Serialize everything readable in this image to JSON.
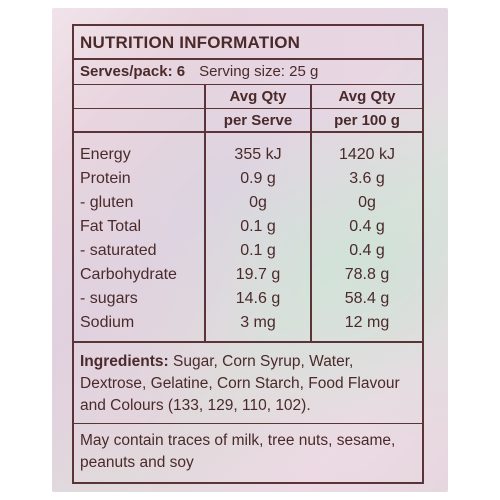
{
  "panel": {
    "title": "NUTRITION INFORMATION",
    "serves": "Serves/pack: 6",
    "serving_size": "Serving size:  25 g"
  },
  "columns": {
    "qty_header_1": "Avg Qty",
    "qty_header_2": "Avg Qty",
    "per_serve": "per Serve",
    "per_100g": "per 100 g"
  },
  "rows": [
    {
      "name": "Energy",
      "serve": "355 kJ",
      "per100": "1420 kJ"
    },
    {
      "name": "Protein",
      "serve": "0.9  g",
      "per100": "3.6 g"
    },
    {
      "name": "- gluten",
      "serve": "0g",
      "per100": "0g"
    },
    {
      "name": "Fat Total",
      "serve": "0.1  g",
      "per100": "0.4  g"
    },
    {
      "name": "- saturated",
      "serve": "0.1 g",
      "per100": "0.4 g"
    },
    {
      "name": "Carbohydrate",
      "serve": "19.7 g",
      "per100": "78.8 g"
    },
    {
      "name": "- sugars",
      "serve": "14.6 g",
      "per100": "58.4 g"
    },
    {
      "name": "Sodium",
      "serve": "3 mg",
      "per100": "12 mg"
    }
  ],
  "ingredients": {
    "label": "Ingredients:",
    "text": " Sugar, Corn Syrup, Water, Dextrose, Gelatine, Corn Starch, Food Flavour and Colours (133, 129, 110, 102)."
  },
  "allergen": "May contain traces of milk, tree nuts, sesame, peanuts and soy",
  "colors": {
    "ink": "#5a3436",
    "background": "#e8d8e0"
  }
}
